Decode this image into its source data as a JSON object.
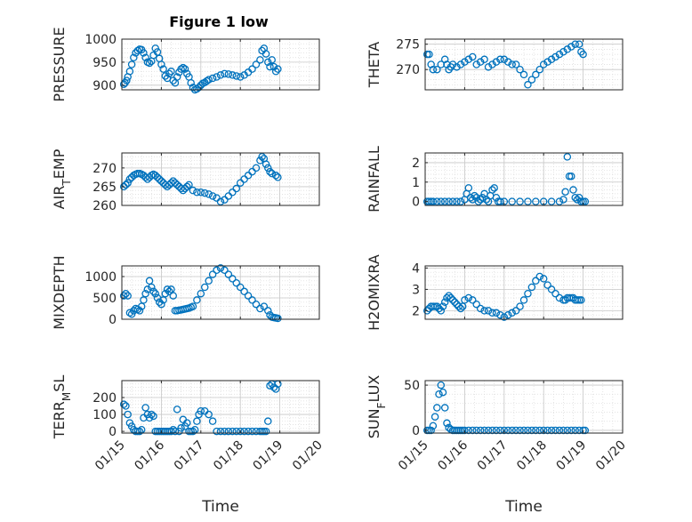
{
  "figure": {
    "title": "Figure 1 low",
    "xlabel": "Time",
    "marker_color": "#0072BD"
  },
  "chart_data": [
    {
      "type": "scatter",
      "ylabel": "PRESSURE",
      "ylim": [
        890,
        1000
      ],
      "yticks": [
        900,
        950,
        1000
      ],
      "xlim": [
        "01/15",
        "01/20"
      ],
      "xticks": [
        "01/15",
        "01/16",
        "01/17",
        "01/18",
        "01/19",
        "01/20"
      ],
      "x": [
        15.05,
        15.08,
        15.12,
        15.15,
        15.2,
        15.25,
        15.3,
        15.35,
        15.4,
        15.45,
        15.5,
        15.55,
        15.6,
        15.65,
        15.7,
        15.75,
        15.8,
        15.85,
        15.9,
        15.95,
        16.0,
        16.05,
        16.1,
        16.15,
        16.2,
        16.25,
        16.3,
        16.35,
        16.4,
        16.45,
        16.5,
        16.55,
        16.6,
        16.65,
        16.7,
        16.75,
        16.8,
        16.85,
        16.9,
        16.95,
        17.0,
        17.05,
        17.1,
        17.15,
        17.2,
        17.3,
        17.4,
        17.5,
        17.6,
        17.7,
        17.8,
        17.9,
        18.0,
        18.1,
        18.2,
        18.3,
        18.4,
        18.5,
        18.55,
        18.6,
        18.65,
        18.7,
        18.75,
        18.8,
        18.85,
        18.9,
        18.95
      ],
      "y": [
        902,
        905,
        910,
        918,
        930,
        945,
        960,
        970,
        975,
        978,
        977,
        970,
        960,
        950,
        948,
        952,
        965,
        980,
        972,
        958,
        945,
        935,
        920,
        915,
        925,
        930,
        910,
        905,
        918,
        928,
        935,
        938,
        935,
        925,
        918,
        905,
        895,
        890,
        892,
        895,
        900,
        904,
        906,
        909,
        912,
        915,
        918,
        922,
        925,
        924,
        922,
        920,
        918,
        922,
        928,
        935,
        945,
        955,
        975,
        980,
        968,
        950,
        940,
        955,
        940,
        930,
        935
      ]
    },
    {
      "type": "scatter",
      "ylabel": "THETA",
      "ylim": [
        266,
        276
      ],
      "yticks": [
        270,
        275
      ],
      "xlim": [
        "01/15",
        "01/20"
      ],
      "xticks": [
        "01/15",
        "01/16",
        "01/17",
        "01/18",
        "01/19",
        "01/20"
      ],
      "x": [
        15.05,
        15.1,
        15.15,
        15.2,
        15.3,
        15.4,
        15.5,
        15.55,
        15.6,
        15.65,
        15.7,
        15.8,
        15.9,
        16.0,
        16.1,
        16.2,
        16.3,
        16.4,
        16.5,
        16.6,
        16.7,
        16.8,
        16.9,
        17.0,
        17.1,
        17.2,
        17.3,
        17.4,
        17.5,
        17.6,
        17.7,
        17.8,
        17.9,
        18.0,
        18.1,
        18.2,
        18.3,
        18.4,
        18.5,
        18.6,
        18.7,
        18.8,
        18.9,
        18.95,
        19.0
      ],
      "y": [
        273,
        273,
        271,
        270,
        270,
        271,
        272,
        271,
        270,
        270.5,
        271,
        270.5,
        271,
        271.5,
        272,
        272.5,
        271,
        271.5,
        272,
        270.5,
        271,
        271.5,
        272,
        272,
        271.5,
        271,
        271,
        270,
        269,
        267,
        268,
        269,
        270,
        271,
        271.5,
        272,
        272.5,
        273,
        273.5,
        274,
        274.5,
        275,
        275,
        273.5,
        273
      ]
    },
    {
      "type": "scatter",
      "ylabel": "AIR_TEMP",
      "ylim": [
        260,
        274
      ],
      "yticks": [
        260,
        265,
        270
      ],
      "xlim": [
        "01/15",
        "01/20"
      ],
      "xticks": [
        "01/15",
        "01/16",
        "01/17",
        "01/18",
        "01/19",
        "01/20"
      ],
      "x": [
        15.05,
        15.1,
        15.15,
        15.2,
        15.25,
        15.3,
        15.35,
        15.4,
        15.45,
        15.5,
        15.55,
        15.6,
        15.65,
        15.7,
        15.75,
        15.8,
        15.85,
        15.9,
        15.95,
        16.0,
        16.05,
        16.1,
        16.15,
        16.2,
        16.25,
        16.3,
        16.35,
        16.4,
        16.45,
        16.5,
        16.55,
        16.6,
        16.65,
        16.7,
        16.8,
        16.9,
        17.0,
        17.1,
        17.2,
        17.3,
        17.4,
        17.5,
        17.6,
        17.7,
        17.8,
        17.9,
        18.0,
        18.1,
        18.2,
        18.3,
        18.4,
        18.5,
        18.55,
        18.6,
        18.65,
        18.7,
        18.75,
        18.8,
        18.9,
        18.95
      ],
      "y": [
        265,
        265.5,
        266,
        267,
        267.5,
        268,
        268.3,
        268.5,
        268.5,
        268.3,
        268,
        267.5,
        267,
        267.5,
        268,
        268.3,
        268,
        267.5,
        267,
        266.5,
        266,
        265.5,
        265,
        265.5,
        266,
        266.5,
        266,
        265.5,
        265,
        264.5,
        264,
        264.5,
        265,
        265.5,
        264,
        263.5,
        263.5,
        263.3,
        263,
        262.5,
        262,
        261,
        261.5,
        262.5,
        263.5,
        264.5,
        266,
        267,
        268,
        269,
        270,
        272,
        273,
        272.5,
        271,
        270,
        269,
        268.5,
        268,
        267.5
      ]
    },
    {
      "type": "scatter",
      "ylabel": "RAINFALL",
      "ylim": [
        -0.2,
        2.5
      ],
      "yticks": [
        0,
        1,
        2
      ],
      "xlim": [
        "01/15",
        "01/20"
      ],
      "xticks": [
        "01/15",
        "01/16",
        "01/17",
        "01/18",
        "01/19",
        "01/20"
      ],
      "x": [
        15.05,
        15.1,
        15.15,
        15.2,
        15.3,
        15.4,
        15.5,
        15.6,
        15.7,
        15.8,
        15.9,
        16.0,
        16.05,
        16.1,
        16.15,
        16.2,
        16.25,
        16.3,
        16.35,
        16.4,
        16.45,
        16.5,
        16.55,
        16.6,
        16.65,
        16.7,
        16.75,
        16.8,
        16.85,
        16.9,
        17.0,
        17.2,
        17.4,
        17.6,
        17.8,
        18.0,
        18.2,
        18.4,
        18.5,
        18.55,
        18.6,
        18.65,
        18.7,
        18.75,
        18.8,
        18.85,
        18.9,
        18.95,
        19.0,
        19.05
      ],
      "y": [
        0,
        0,
        0,
        0,
        0,
        0,
        0,
        0,
        0,
        0,
        0,
        0.1,
        0.4,
        0.7,
        0.2,
        0.1,
        0.3,
        0.2,
        0,
        0.1,
        0.2,
        0.4,
        0.1,
        0,
        0.3,
        0.6,
        0.7,
        0.2,
        0,
        0,
        0,
        0,
        0,
        0,
        0,
        0,
        0,
        0,
        0.1,
        0.5,
        2.3,
        1.3,
        1.3,
        0.6,
        0.2,
        0.1,
        0.2,
        0,
        0,
        0
      ]
    },
    {
      "type": "scatter",
      "ylabel": "MIXDEPTH",
      "ylim": [
        0,
        1250
      ],
      "yticks": [
        0,
        500,
        1000
      ],
      "xlim": [
        "01/15",
        "01/20"
      ],
      "xticks": [
        "01/15",
        "01/16",
        "01/17",
        "01/18",
        "01/19",
        "01/20"
      ],
      "x": [
        15.05,
        15.1,
        15.15,
        15.2,
        15.25,
        15.3,
        15.35,
        15.4,
        15.45,
        15.5,
        15.55,
        15.6,
        15.65,
        15.7,
        15.75,
        15.8,
        15.85,
        15.9,
        15.95,
        16.0,
        16.05,
        16.1,
        16.15,
        16.2,
        16.25,
        16.3,
        16.35,
        16.4,
        16.45,
        16.5,
        16.55,
        16.6,
        16.65,
        16.7,
        16.75,
        16.8,
        16.9,
        17.0,
        17.1,
        17.2,
        17.3,
        17.4,
        17.5,
        17.6,
        17.7,
        17.8,
        17.9,
        18.0,
        18.1,
        18.2,
        18.3,
        18.4,
        18.5,
        18.6,
        18.7,
        18.75,
        18.8,
        18.85,
        18.9,
        18.95
      ],
      "y": [
        550,
        600,
        550,
        150,
        120,
        200,
        250,
        230,
        200,
        300,
        450,
        600,
        700,
        900,
        750,
        650,
        600,
        500,
        400,
        350,
        450,
        600,
        700,
        650,
        700,
        550,
        200,
        200,
        210,
        220,
        230,
        240,
        250,
        260,
        280,
        300,
        450,
        600,
        750,
        900,
        1050,
        1150,
        1200,
        1150,
        1050,
        950,
        850,
        750,
        650,
        550,
        450,
        350,
        250,
        300,
        200,
        100,
        50,
        40,
        30,
        20
      ]
    },
    {
      "type": "scatter",
      "ylabel": "H2OMIXRA",
      "ylim": [
        1.6,
        4.1
      ],
      "yticks": [
        2,
        3,
        4
      ],
      "xlim": [
        "01/15",
        "01/20"
      ],
      "xticks": [
        "01/15",
        "01/16",
        "01/17",
        "01/18",
        "01/19",
        "01/20"
      ],
      "x": [
        15.05,
        15.1,
        15.15,
        15.2,
        15.25,
        15.3,
        15.35,
        15.4,
        15.45,
        15.5,
        15.55,
        15.6,
        15.65,
        15.7,
        15.75,
        15.8,
        15.85,
        15.9,
        15.95,
        16.0,
        16.1,
        16.2,
        16.3,
        16.4,
        16.5,
        16.6,
        16.7,
        16.8,
        16.9,
        17.0,
        17.1,
        17.2,
        17.3,
        17.4,
        17.5,
        17.6,
        17.7,
        17.8,
        17.9,
        18.0,
        18.1,
        18.2,
        18.3,
        18.4,
        18.5,
        18.55,
        18.6,
        18.65,
        18.7,
        18.75,
        18.8,
        18.85,
        18.9,
        18.95
      ],
      "y": [
        2.0,
        2.1,
        2.2,
        2.2,
        2.2,
        2.2,
        2.1,
        2.0,
        2.2,
        2.4,
        2.6,
        2.7,
        2.6,
        2.5,
        2.4,
        2.3,
        2.2,
        2.1,
        2.2,
        2.5,
        2.6,
        2.5,
        2.3,
        2.1,
        2.0,
        2.0,
        1.9,
        1.9,
        1.8,
        1.7,
        1.8,
        1.9,
        2.0,
        2.2,
        2.5,
        2.8,
        3.1,
        3.4,
        3.6,
        3.5,
        3.2,
        3.0,
        2.8,
        2.6,
        2.5,
        2.5,
        2.6,
        2.6,
        2.6,
        2.6,
        2.5,
        2.5,
        2.5,
        2.5
      ]
    },
    {
      "type": "scatter",
      "ylabel": "TERR_MSL",
      "ylim": [
        -10,
        300
      ],
      "yticks": [
        0,
        100,
        200
      ],
      "xlim": [
        "01/15",
        "01/20"
      ],
      "xticks": [
        "01/15",
        "01/16",
        "01/17",
        "01/18",
        "01/19",
        "01/20"
      ],
      "x": [
        15.05,
        15.1,
        15.15,
        15.2,
        15.25,
        15.3,
        15.35,
        15.4,
        15.45,
        15.5,
        15.55,
        15.6,
        15.65,
        15.7,
        15.75,
        15.8,
        15.85,
        15.9,
        15.95,
        16.0,
        16.05,
        16.1,
        16.15,
        16.2,
        16.25,
        16.3,
        16.35,
        16.4,
        16.45,
        16.5,
        16.55,
        16.6,
        16.65,
        16.7,
        16.75,
        16.8,
        16.85,
        16.9,
        16.95,
        17.0,
        17.1,
        17.2,
        17.3,
        17.4,
        17.5,
        17.6,
        17.7,
        17.8,
        17.9,
        18.0,
        18.1,
        18.2,
        18.3,
        18.4,
        18.5,
        18.55,
        18.6,
        18.65,
        18.7,
        18.75,
        18.8,
        18.85,
        18.9,
        18.95
      ],
      "y": [
        160,
        150,
        100,
        50,
        30,
        10,
        0,
        0,
        0,
        10,
        80,
        140,
        100,
        80,
        100,
        90,
        0,
        0,
        0,
        0,
        0,
        0,
        0,
        0,
        0,
        10,
        0,
        130,
        0,
        20,
        70,
        30,
        50,
        0,
        0,
        0,
        10,
        60,
        100,
        120,
        120,
        100,
        60,
        0,
        0,
        0,
        0,
        0,
        0,
        0,
        0,
        0,
        0,
        0,
        0,
        0,
        0,
        0,
        60,
        270,
        280,
        260,
        250,
        280
      ]
    },
    {
      "type": "scatter",
      "ylabel": "SUN_FLUX",
      "ylim": [
        -3,
        55
      ],
      "yticks": [
        0,
        50
      ],
      "xlim": [
        "01/15",
        "01/20"
      ],
      "xticks": [
        "01/15",
        "01/16",
        "01/17",
        "01/18",
        "01/19",
        "01/20"
      ],
      "x": [
        15.05,
        15.1,
        15.15,
        15.2,
        15.25,
        15.3,
        15.35,
        15.4,
        15.45,
        15.5,
        15.55,
        15.6,
        15.65,
        15.7,
        15.75,
        15.8,
        15.85,
        15.9,
        15.95,
        16.0,
        16.1,
        16.2,
        16.3,
        16.4,
        16.5,
        16.6,
        16.7,
        16.8,
        16.9,
        17.0,
        17.1,
        17.2,
        17.3,
        17.4,
        17.5,
        17.6,
        17.7,
        17.8,
        17.9,
        18.0,
        18.1,
        18.2,
        18.3,
        18.4,
        18.5,
        18.6,
        18.7,
        18.8,
        18.9,
        19.0,
        19.05
      ],
      "y": [
        0,
        0,
        0,
        5,
        15,
        25,
        40,
        50,
        42,
        25,
        8,
        3,
        1,
        0,
        0,
        0,
        0,
        0,
        0,
        0,
        0,
        0,
        0,
        0,
        0,
        0,
        0,
        0,
        0,
        0,
        0,
        0,
        0,
        0,
        0,
        0,
        0,
        0,
        0,
        0,
        0,
        0,
        0,
        0,
        0,
        0,
        0,
        0,
        0,
        0,
        0
      ]
    }
  ]
}
